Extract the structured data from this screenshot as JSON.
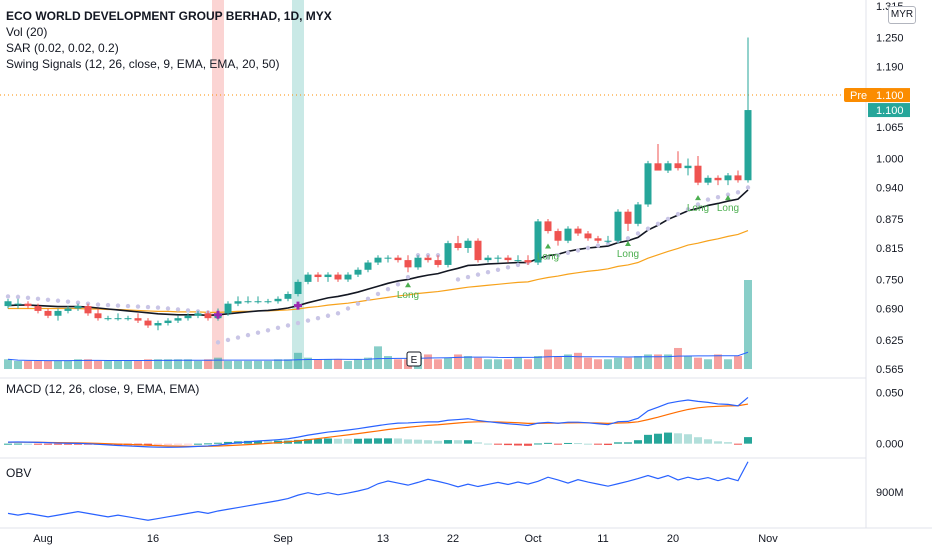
{
  "header": {
    "title": "ECO WORLD DEVELOPMENT GROUP BERHAD, 1D, MYX",
    "vol": "Vol (20)",
    "sar": "SAR (0.02, 0.02, 0.2)",
    "swing": "Swing Signals (12, 26, close, 9, EMA, EMA, 20, 50)",
    "currency": "MYR",
    "macd": "MACD (12, 26, close, 9, EMA, EMA)",
    "obv": "OBV"
  },
  "badges": {
    "pre_label": "Pre",
    "pre_value": "1.100",
    "last_value": "1.100",
    "earnings_marker": "E",
    "signal_label": "Long"
  },
  "colors": {
    "up": "#26a69a",
    "down": "#ef5350",
    "ema20": "#131722",
    "ema50": "#f7a21b",
    "sar": "#c9c5e6",
    "macd": "#2962ff",
    "signal": "#ff6d00",
    "obv": "#2962ff",
    "pre": "#fb8c00"
  },
  "chart_data": [
    {
      "type": "candlestick",
      "title": "ECO WORLD DEVELOPMENT GROUP BERHAD, 1D, MYX",
      "x_ticks": [
        "Aug",
        "16",
        "Sep",
        "13",
        "22",
        "Oct",
        "11",
        "20",
        "Nov"
      ],
      "y_ticks": [
        "1.315",
        "1.250",
        "1.190",
        "1.100",
        "1.065",
        "1.000",
        "0.940",
        "0.875",
        "0.815",
        "0.750",
        "0.690",
        "0.625",
        "0.565"
      ],
      "ylim": [
        0.565,
        1.315
      ],
      "candles": [
        {
          "o": 0.695,
          "h": 0.71,
          "l": 0.69,
          "c": 0.705
        },
        {
          "o": 0.7,
          "h": 0.71,
          "l": 0.69,
          "c": 0.7
        },
        {
          "o": 0.7,
          "h": 0.705,
          "l": 0.69,
          "c": 0.695
        },
        {
          "o": 0.695,
          "h": 0.7,
          "l": 0.68,
          "c": 0.685
        },
        {
          "o": 0.685,
          "h": 0.69,
          "l": 0.67,
          "c": 0.675
        },
        {
          "o": 0.675,
          "h": 0.69,
          "l": 0.665,
          "c": 0.685
        },
        {
          "o": 0.685,
          "h": 0.695,
          "l": 0.68,
          "c": 0.69
        },
        {
          "o": 0.69,
          "h": 0.7,
          "l": 0.685,
          "c": 0.695
        },
        {
          "o": 0.695,
          "h": 0.7,
          "l": 0.675,
          "c": 0.68
        },
        {
          "o": 0.68,
          "h": 0.69,
          "l": 0.665,
          "c": 0.67
        },
        {
          "o": 0.67,
          "h": 0.675,
          "l": 0.665,
          "c": 0.67
        },
        {
          "o": 0.67,
          "h": 0.68,
          "l": 0.665,
          "c": 0.67
        },
        {
          "o": 0.67,
          "h": 0.675,
          "l": 0.665,
          "c": 0.67
        },
        {
          "o": 0.67,
          "h": 0.68,
          "l": 0.66,
          "c": 0.665
        },
        {
          "o": 0.665,
          "h": 0.67,
          "l": 0.65,
          "c": 0.655
        },
        {
          "o": 0.655,
          "h": 0.665,
          "l": 0.645,
          "c": 0.66
        },
        {
          "o": 0.66,
          "h": 0.67,
          "l": 0.655,
          "c": 0.665
        },
        {
          "o": 0.665,
          "h": 0.675,
          "l": 0.66,
          "c": 0.67
        },
        {
          "o": 0.67,
          "h": 0.68,
          "l": 0.665,
          "c": 0.675
        },
        {
          "o": 0.675,
          "h": 0.685,
          "l": 0.67,
          "c": 0.68
        },
        {
          "o": 0.68,
          "h": 0.685,
          "l": 0.665,
          "c": 0.67
        },
        {
          "o": 0.67,
          "h": 0.69,
          "l": 0.665,
          "c": 0.68
        },
        {
          "o": 0.68,
          "h": 0.705,
          "l": 0.675,
          "c": 0.7
        },
        {
          "o": 0.7,
          "h": 0.715,
          "l": 0.695,
          "c": 0.705
        },
        {
          "o": 0.705,
          "h": 0.715,
          "l": 0.7,
          "c": 0.705
        },
        {
          "o": 0.705,
          "h": 0.715,
          "l": 0.7,
          "c": 0.705
        },
        {
          "o": 0.705,
          "h": 0.71,
          "l": 0.7,
          "c": 0.705
        },
        {
          "o": 0.705,
          "h": 0.715,
          "l": 0.7,
          "c": 0.71
        },
        {
          "o": 0.71,
          "h": 0.725,
          "l": 0.705,
          "c": 0.72
        },
        {
          "o": 0.72,
          "h": 0.75,
          "l": 0.715,
          "c": 0.745
        },
        {
          "o": 0.745,
          "h": 0.765,
          "l": 0.74,
          "c": 0.76
        },
        {
          "o": 0.76,
          "h": 0.765,
          "l": 0.745,
          "c": 0.755
        },
        {
          "o": 0.755,
          "h": 0.765,
          "l": 0.745,
          "c": 0.76
        },
        {
          "o": 0.76,
          "h": 0.765,
          "l": 0.745,
          "c": 0.75
        },
        {
          "o": 0.75,
          "h": 0.765,
          "l": 0.745,
          "c": 0.76
        },
        {
          "o": 0.76,
          "h": 0.775,
          "l": 0.755,
          "c": 0.77
        },
        {
          "o": 0.77,
          "h": 0.79,
          "l": 0.765,
          "c": 0.785
        },
        {
          "o": 0.785,
          "h": 0.8,
          "l": 0.78,
          "c": 0.795
        },
        {
          "o": 0.795,
          "h": 0.8,
          "l": 0.785,
          "c": 0.795
        },
        {
          "o": 0.795,
          "h": 0.8,
          "l": 0.785,
          "c": 0.79
        },
        {
          "o": 0.79,
          "h": 0.8,
          "l": 0.765,
          "c": 0.775
        },
        {
          "o": 0.775,
          "h": 0.8,
          "l": 0.77,
          "c": 0.795
        },
        {
          "o": 0.795,
          "h": 0.8,
          "l": 0.785,
          "c": 0.79
        },
        {
          "o": 0.79,
          "h": 0.8,
          "l": 0.775,
          "c": 0.78
        },
        {
          "o": 0.78,
          "h": 0.83,
          "l": 0.775,
          "c": 0.825
        },
        {
          "o": 0.825,
          "h": 0.84,
          "l": 0.81,
          "c": 0.815
        },
        {
          "o": 0.815,
          "h": 0.835,
          "l": 0.805,
          "c": 0.83
        },
        {
          "o": 0.83,
          "h": 0.835,
          "l": 0.785,
          "c": 0.79
        },
        {
          "o": 0.79,
          "h": 0.8,
          "l": 0.785,
          "c": 0.795
        },
        {
          "o": 0.795,
          "h": 0.8,
          "l": 0.785,
          "c": 0.795
        },
        {
          "o": 0.795,
          "h": 0.8,
          "l": 0.785,
          "c": 0.79
        },
        {
          "o": 0.79,
          "h": 0.8,
          "l": 0.785,
          "c": 0.79
        },
        {
          "o": 0.79,
          "h": 0.8,
          "l": 0.78,
          "c": 0.785
        },
        {
          "o": 0.785,
          "h": 0.875,
          "l": 0.78,
          "c": 0.87
        },
        {
          "o": 0.87,
          "h": 0.875,
          "l": 0.845,
          "c": 0.85
        },
        {
          "o": 0.85,
          "h": 0.855,
          "l": 0.82,
          "c": 0.83
        },
        {
          "o": 0.83,
          "h": 0.86,
          "l": 0.825,
          "c": 0.855
        },
        {
          "o": 0.855,
          "h": 0.86,
          "l": 0.84,
          "c": 0.845
        },
        {
          "o": 0.845,
          "h": 0.85,
          "l": 0.83,
          "c": 0.835
        },
        {
          "o": 0.835,
          "h": 0.84,
          "l": 0.825,
          "c": 0.83
        },
        {
          "o": 0.83,
          "h": 0.84,
          "l": 0.825,
          "c": 0.83
        },
        {
          "o": 0.83,
          "h": 0.895,
          "l": 0.825,
          "c": 0.89
        },
        {
          "o": 0.89,
          "h": 0.895,
          "l": 0.85,
          "c": 0.865
        },
        {
          "o": 0.865,
          "h": 0.91,
          "l": 0.86,
          "c": 0.905
        },
        {
          "o": 0.905,
          "h": 0.995,
          "l": 0.9,
          "c": 0.99
        },
        {
          "o": 0.99,
          "h": 1.03,
          "l": 0.975,
          "c": 0.975
        },
        {
          "o": 0.975,
          "h": 0.995,
          "l": 0.97,
          "c": 0.99
        },
        {
          "o": 0.99,
          "h": 1.015,
          "l": 0.975,
          "c": 0.98
        },
        {
          "o": 0.98,
          "h": 1.0,
          "l": 0.965,
          "c": 0.985
        },
        {
          "o": 0.985,
          "h": 1.005,
          "l": 0.945,
          "c": 0.95
        },
        {
          "o": 0.95,
          "h": 0.965,
          "l": 0.945,
          "c": 0.96
        },
        {
          "o": 0.96,
          "h": 0.965,
          "l": 0.945,
          "c": 0.955
        },
        {
          "o": 0.955,
          "h": 0.97,
          "l": 0.945,
          "c": 0.965
        },
        {
          "o": 0.965,
          "h": 0.975,
          "l": 0.95,
          "c": 0.955
        },
        {
          "o": 0.955,
          "h": 1.25,
          "l": 0.95,
          "c": 1.1
        }
      ],
      "ema20": [
        0.696,
        0.697,
        0.697,
        0.696,
        0.695,
        0.694,
        0.694,
        0.694,
        0.693,
        0.691,
        0.689,
        0.687,
        0.685,
        0.683,
        0.681,
        0.679,
        0.678,
        0.677,
        0.677,
        0.677,
        0.676,
        0.677,
        0.679,
        0.681,
        0.683,
        0.685,
        0.686,
        0.688,
        0.691,
        0.696,
        0.702,
        0.707,
        0.712,
        0.715,
        0.719,
        0.724,
        0.73,
        0.736,
        0.742,
        0.747,
        0.75,
        0.755,
        0.759,
        0.762,
        0.768,
        0.773,
        0.779,
        0.78,
        0.782,
        0.783,
        0.784,
        0.785,
        0.785,
        0.793,
        0.799,
        0.802,
        0.808,
        0.812,
        0.815,
        0.817,
        0.819,
        0.826,
        0.83,
        0.837,
        0.852,
        0.862,
        0.874,
        0.883,
        0.892,
        0.897,
        0.903,
        0.907,
        0.912,
        0.916,
        0.935
      ],
      "ema50": [
        0.69,
        0.69,
        0.69,
        0.69,
        0.69,
        0.69,
        0.69,
        0.69,
        0.689,
        0.689,
        0.688,
        0.688,
        0.687,
        0.686,
        0.685,
        0.684,
        0.684,
        0.683,
        0.683,
        0.683,
        0.682,
        0.682,
        0.683,
        0.684,
        0.684,
        0.685,
        0.685,
        0.686,
        0.687,
        0.689,
        0.692,
        0.694,
        0.697,
        0.699,
        0.701,
        0.704,
        0.707,
        0.71,
        0.713,
        0.716,
        0.718,
        0.721,
        0.723,
        0.725,
        0.728,
        0.731,
        0.734,
        0.736,
        0.738,
        0.74,
        0.742,
        0.744,
        0.745,
        0.75,
        0.754,
        0.757,
        0.761,
        0.764,
        0.767,
        0.769,
        0.772,
        0.777,
        0.78,
        0.785,
        0.794,
        0.801,
        0.808,
        0.814,
        0.821,
        0.825,
        0.83,
        0.834,
        0.839,
        0.843,
        0.851
      ],
      "sar": [
        0.715,
        0.714,
        0.712,
        0.71,
        0.708,
        0.706,
        0.704,
        0.702,
        0.7,
        0.698,
        0.697,
        0.696,
        0.695,
        0.694,
        0.693,
        0.692,
        0.69,
        0.688,
        0.686,
        0.684,
        0.682,
        0.62,
        0.625,
        0.63,
        0.635,
        0.64,
        0.645,
        0.65,
        0.655,
        0.66,
        0.665,
        0.67,
        0.675,
        0.68,
        0.69,
        0.7,
        0.71,
        0.72,
        0.73,
        0.74,
        0.755,
        0.8,
        0.8,
        0.8,
        0.8,
        0.75,
        0.755,
        0.76,
        0.765,
        0.77,
        0.775,
        0.78,
        0.785,
        0.79,
        0.795,
        0.8,
        0.805,
        0.81,
        0.815,
        0.82,
        0.825,
        0.83,
        0.835,
        0.845,
        0.855,
        0.865,
        0.875,
        0.885,
        0.895,
        0.905,
        0.915,
        0.92,
        0.925,
        0.93,
        0.94
      ],
      "highlight_bars": [
        {
          "index": 21,
          "color": "red"
        },
        {
          "index": 29,
          "color": "green"
        }
      ],
      "long_signals": [
        40,
        54,
        62,
        69,
        72
      ]
    },
    {
      "type": "bar",
      "title": "Vol (20)",
      "values": [
        6,
        5,
        5,
        5,
        5,
        5,
        5,
        6,
        6,
        5,
        5,
        5,
        5,
        5,
        6,
        6,
        6,
        6,
        6,
        5,
        6,
        7,
        5,
        5,
        5,
        5,
        5,
        6,
        6,
        10,
        7,
        6,
        6,
        6,
        5,
        6,
        7,
        14,
        8,
        6,
        6,
        8,
        9,
        6,
        7,
        9,
        8,
        7,
        6,
        6,
        6,
        7,
        6,
        8,
        12,
        8,
        9,
        10,
        7,
        6,
        6,
        7,
        7,
        8,
        9,
        9,
        9,
        13,
        8,
        7,
        6,
        9,
        6,
        8,
        55
      ]
    },
    {
      "type": "line",
      "title": "MACD (12, 26, close, 9, EMA, EMA)",
      "y_ticks": [
        "0.050",
        "0.000"
      ],
      "macd": [
        0.0015,
        0.0016,
        0.0015,
        0.0013,
        0.001,
        0.0006,
        0.0004,
        0.0003,
        0.0,
        -0.0006,
        -0.0012,
        -0.0018,
        -0.0022,
        -0.0026,
        -0.0031,
        -0.0034,
        -0.0035,
        -0.0034,
        -0.0031,
        -0.0026,
        -0.0022,
        -0.0014,
        -0.0002,
        0.0009,
        0.0018,
        0.0026,
        0.0032,
        0.0039,
        0.0048,
        0.0064,
        0.0083,
        0.0098,
        0.0113,
        0.0122,
        0.0133,
        0.0146,
        0.0161,
        0.0176,
        0.019,
        0.02,
        0.0202,
        0.0208,
        0.0212,
        0.0212,
        0.0228,
        0.0235,
        0.0243,
        0.0226,
        0.0214,
        0.0204,
        0.0194,
        0.0186,
        0.0177,
        0.02,
        0.0208,
        0.0199,
        0.0209,
        0.0209,
        0.0203,
        0.0194,
        0.0185,
        0.0214,
        0.0217,
        0.0247,
        0.032,
        0.0355,
        0.0393,
        0.0411,
        0.0425,
        0.0412,
        0.0402,
        0.0387,
        0.0383,
        0.0368,
        0.045
      ],
      "signal": [
        0.0015,
        0.0015,
        0.0015,
        0.0014,
        0.0012,
        0.0011,
        0.0009,
        0.0008,
        0.0006,
        0.0003,
        0.0,
        -0.0004,
        -0.0007,
        -0.0011,
        -0.0015,
        -0.0019,
        -0.0022,
        -0.0024,
        -0.0026,
        -0.0026,
        -0.0025,
        -0.0023,
        -0.0019,
        -0.0014,
        -0.0009,
        -0.0004,
        0.0003,
        0.001,
        0.0018,
        0.0027,
        0.0038,
        0.005,
        0.0062,
        0.0074,
        0.0086,
        0.0098,
        0.0111,
        0.0124,
        0.0138,
        0.0149,
        0.016,
        0.0169,
        0.0178,
        0.0184,
        0.0193,
        0.0201,
        0.0209,
        0.0213,
        0.0213,
        0.0211,
        0.0208,
        0.0204,
        0.0198,
        0.0198,
        0.02,
        0.02,
        0.0202,
        0.0203,
        0.0203,
        0.0201,
        0.0198,
        0.0201,
        0.0204,
        0.0213,
        0.0234,
        0.0258,
        0.0285,
        0.031,
        0.0333,
        0.0349,
        0.0359,
        0.0364,
        0.0368,
        0.0369,
        0.0386
      ],
      "histogram": [
        0.0,
        0.0001,
        0.0,
        -0.0001,
        -0.0002,
        -0.0005,
        -0.0005,
        -0.0005,
        -0.0006,
        -0.0009,
        -0.0012,
        -0.0014,
        -0.0015,
        -0.0015,
        -0.0016,
        -0.0015,
        -0.0013,
        -0.001,
        -0.0005,
        0.0,
        0.0003,
        0.0009,
        0.0017,
        0.0023,
        0.0027,
        0.003,
        0.0029,
        0.0029,
        0.003,
        0.0037,
        0.0045,
        0.0048,
        0.0051,
        0.0048,
        0.0047,
        0.0048,
        0.005,
        0.0052,
        0.0052,
        0.0051,
        0.0042,
        0.0039,
        0.0034,
        0.0028,
        0.0035,
        0.0034,
        0.0034,
        0.0013,
        0.0001,
        -0.0007,
        -0.0014,
        -0.0018,
        -0.0021,
        0.0002,
        0.0008,
        -0.0001,
        0.0007,
        0.0006,
        0.0,
        -0.0007,
        -0.0013,
        0.0013,
        0.0013,
        0.0034,
        0.0086,
        0.0097,
        0.0108,
        0.0101,
        0.0092,
        0.0063,
        0.0043,
        0.0023,
        0.0015,
        -0.0001,
        0.0064
      ]
    },
    {
      "type": "line",
      "title": "OBV",
      "y_ticks": [
        "900M"
      ],
      "values": [
        10,
        5,
        10,
        5,
        0,
        5,
        10,
        15,
        10,
        5,
        0,
        5,
        0,
        -5,
        -10,
        -5,
        0,
        5,
        10,
        15,
        10,
        17,
        22,
        27,
        32,
        37,
        42,
        47,
        53,
        63,
        70,
        64,
        70,
        64,
        69,
        75,
        82,
        96,
        104,
        98,
        92,
        100,
        109,
        103,
        96,
        87,
        95,
        88,
        94,
        100,
        94,
        101,
        95,
        103,
        115,
        107,
        98,
        108,
        101,
        95,
        89,
        96,
        103,
        111,
        120,
        111,
        120,
        107,
        115,
        108,
        114,
        105,
        113,
        105,
        160
      ]
    }
  ]
}
